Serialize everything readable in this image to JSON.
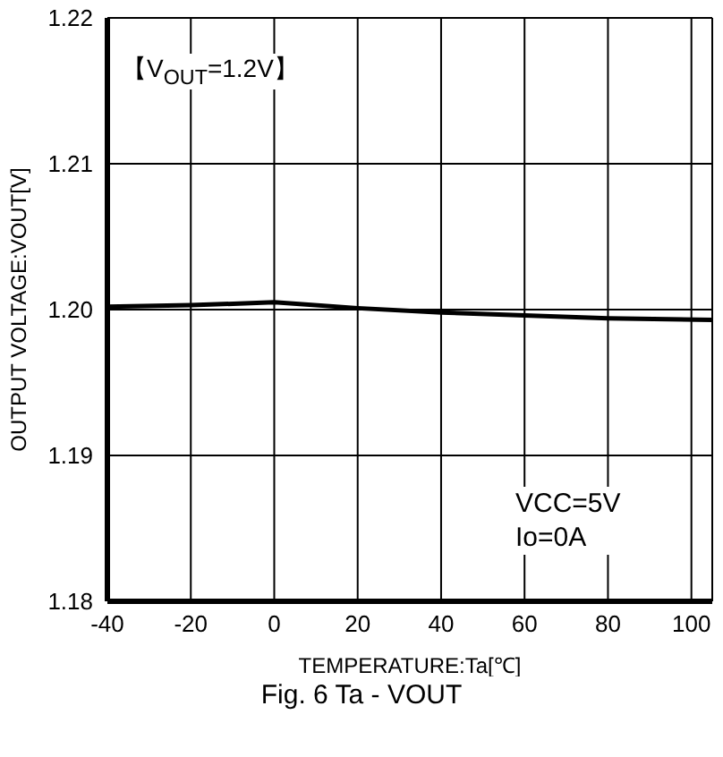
{
  "chart_data": {
    "type": "line",
    "title": "Fig. 6 Ta - VOUT",
    "xlabel": "TEMPERATURE:Ta[℃]",
    "ylabel": "OUTPUT VOLTAGE:VOUT[V]",
    "annotations": [
      "【V$_{OUT}$=1.2V】",
      "VCC=5V\nIo=0A"
    ],
    "x": [
      -40,
      -20,
      0,
      20,
      40,
      60,
      80,
      105
    ],
    "series": [
      {
        "color": "#000000",
        "values": [
          1.2002,
          1.2003,
          1.2005,
          1.2001,
          1.1998,
          1.1996,
          1.1994,
          1.1993
        ]
      }
    ],
    "xlim": [
      -40,
      105
    ],
    "xticks": [
      -40,
      -20,
      0,
      20,
      40,
      60,
      80,
      100
    ],
    "ylim": [
      1.18,
      1.22
    ],
    "yticks": [
      1.18,
      1.19,
      {
        "value": 1.2,
        "label": "1.20"
      },
      1.21,
      1.22
    ],
    "grid": true,
    "marker": "none",
    "line_style": "solid"
  }
}
